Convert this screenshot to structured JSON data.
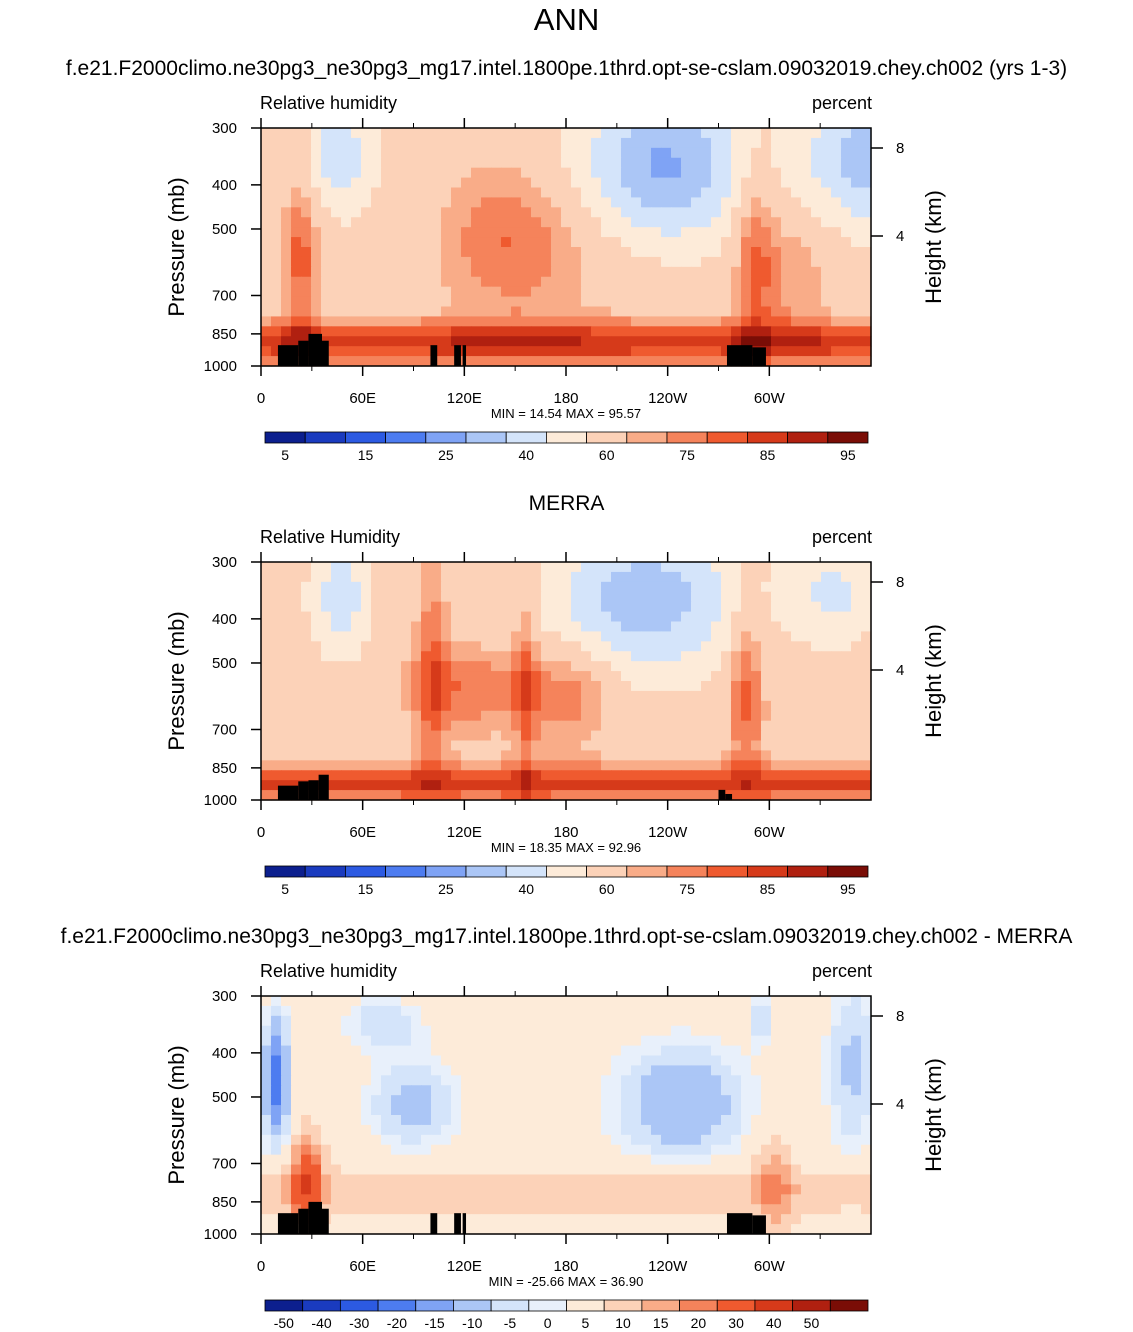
{
  "page_title": "ANN",
  "chart_data": [
    {
      "type": "heatmap",
      "title": "f.e21.F2000climo.ne30pg3_ne30pg3_mg17.intel.1800pe.1thrd.opt-se-cslam.09032019.chey.ch002 (yrs 1-3)",
      "left_label": "Relative humidity",
      "right_label": "percent",
      "ylabel": "Pressure (mb)",
      "y2label": "Height (km)",
      "x_ticks": [
        "0",
        "60E",
        "120E",
        "180",
        "120W",
        "60W"
      ],
      "x_tick_values": [
        0,
        60,
        120,
        180,
        240,
        300
      ],
      "xlim": [
        0,
        360
      ],
      "y_ticks": [
        "300",
        "400",
        "500",
        "700",
        "850",
        "1000"
      ],
      "y_tick_values": [
        300,
        400,
        500,
        700,
        850,
        1000
      ],
      "ylim": [
        300,
        1000
      ],
      "y2_ticks": [
        "4",
        "8"
      ],
      "y2_tick_values": [
        4,
        8
      ],
      "stats": "MIN =  14.54  MAX =  95.57",
      "min": 14.54,
      "max": 95.57,
      "colorbar_labels": [
        "5",
        "15",
        "25",
        "40",
        "60",
        "75",
        "85",
        "95"
      ],
      "colors": [
        "#0c1f8e",
        "#1a3bbf",
        "#2c5ae2",
        "#4d7cf0",
        "#7fa3f5",
        "#abc6f6",
        "#d4e4fa",
        "#fdebd9",
        "#fcd2b8",
        "#f9ac88",
        "#f5835b",
        "#ef5a2f",
        "#d63a1a",
        "#b02010",
        "#7a0d06"
      ],
      "field": "model"
    },
    {
      "type": "heatmap",
      "title": "MERRA",
      "left_label": "Relative Humidity",
      "right_label": "percent",
      "ylabel": "Pressure (mb)",
      "y2label": "Height (km)",
      "x_ticks": [
        "0",
        "60E",
        "120E",
        "180",
        "120W",
        "60W"
      ],
      "x_tick_values": [
        0,
        60,
        120,
        180,
        240,
        300
      ],
      "xlim": [
        0,
        360
      ],
      "y_ticks": [
        "300",
        "400",
        "500",
        "700",
        "850",
        "1000"
      ],
      "y_tick_values": [
        300,
        400,
        500,
        700,
        850,
        1000
      ],
      "ylim": [
        300,
        1000
      ],
      "y2_ticks": [
        "4",
        "8"
      ],
      "y2_tick_values": [
        4,
        8
      ],
      "stats": "MIN =  18.35  MAX =  92.96",
      "min": 18.35,
      "max": 92.96,
      "colorbar_labels": [
        "5",
        "15",
        "25",
        "40",
        "60",
        "75",
        "85",
        "95"
      ],
      "colors": [
        "#0c1f8e",
        "#1a3bbf",
        "#2c5ae2",
        "#4d7cf0",
        "#7fa3f5",
        "#abc6f6",
        "#d4e4fa",
        "#fdebd9",
        "#fcd2b8",
        "#f9ac88",
        "#f5835b",
        "#ef5a2f",
        "#d63a1a",
        "#b02010",
        "#7a0d06"
      ],
      "field": "obs"
    },
    {
      "type": "heatmap",
      "title": "f.e21.F2000climo.ne30pg3_ne30pg3_mg17.intel.1800pe.1thrd.opt-se-cslam.09032019.chey.ch002 - MERRA",
      "left_label": "Relative humidity",
      "right_label": "percent",
      "ylabel": "Pressure (mb)",
      "y2label": "Height (km)",
      "x_ticks": [
        "0",
        "60E",
        "120E",
        "180",
        "120W",
        "60W"
      ],
      "x_tick_values": [
        0,
        60,
        120,
        180,
        240,
        300
      ],
      "xlim": [
        0,
        360
      ],
      "y_ticks": [
        "300",
        "400",
        "500",
        "700",
        "850",
        "1000"
      ],
      "y_tick_values": [
        300,
        400,
        500,
        700,
        850,
        1000
      ],
      "ylim": [
        300,
        1000
      ],
      "y2_ticks": [
        "4",
        "8"
      ],
      "y2_tick_values": [
        4,
        8
      ],
      "stats": "MIN = -25.66  MAX = 36.90",
      "min": -25.66,
      "max": 36.9,
      "colorbar_labels": [
        "-50",
        "-40",
        "-30",
        "-20",
        "-15",
        "-10",
        "-5",
        "0",
        "5",
        "10",
        "15",
        "20",
        "30",
        "40",
        "50"
      ],
      "colors": [
        "#0c1f8e",
        "#1a3bbf",
        "#2c5ae2",
        "#4d7cf0",
        "#7fa3f5",
        "#abc6f6",
        "#d4e4fa",
        "#e8f0fb",
        "#fdebd9",
        "#fcd2b8",
        "#f9ac88",
        "#f5835b",
        "#ef5a2f",
        "#d63a1a",
        "#b02010",
        "#7a0d06"
      ],
      "field": "diff"
    }
  ]
}
